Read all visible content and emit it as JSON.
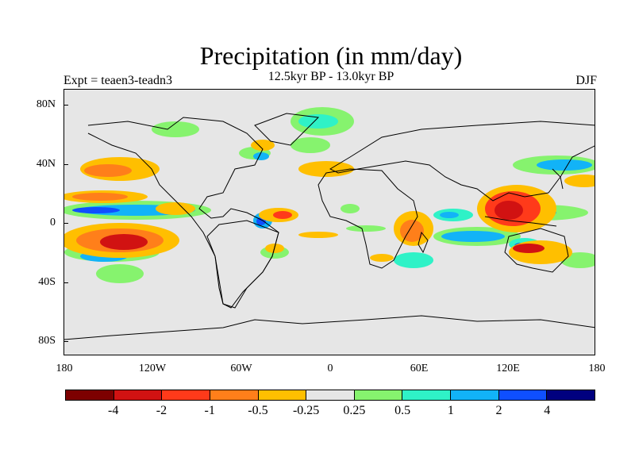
{
  "title": "Precipitation (in mm/day)",
  "subtitle": "12.5kyr BP - 13.0kyr BP",
  "left_label": "Expt = teaen3-teadn3",
  "right_label": "DJF",
  "lat_ticks": [
    "80N",
    "40N",
    "0",
    "40S",
    "80S"
  ],
  "lon_ticks": [
    "180",
    "120W",
    "60W",
    "0",
    "60E",
    "120E",
    "180"
  ],
  "colorbar": {
    "labels": [
      "-4",
      "-2",
      "-1",
      "-0.5",
      "-0.25",
      "0.25",
      "0.5",
      "1",
      "2",
      "4"
    ],
    "colors": [
      "#7d0000",
      "#d11212",
      "#ff3a1a",
      "#ff7f1a",
      "#ffbf00",
      "#e6e6e6",
      "#86f36e",
      "#2ff2c7",
      "#12b3f7",
      "#0f4fff",
      "#00007f"
    ]
  },
  "colors": {
    "background": "#e6e6e6",
    "coastline": "#000000"
  }
}
